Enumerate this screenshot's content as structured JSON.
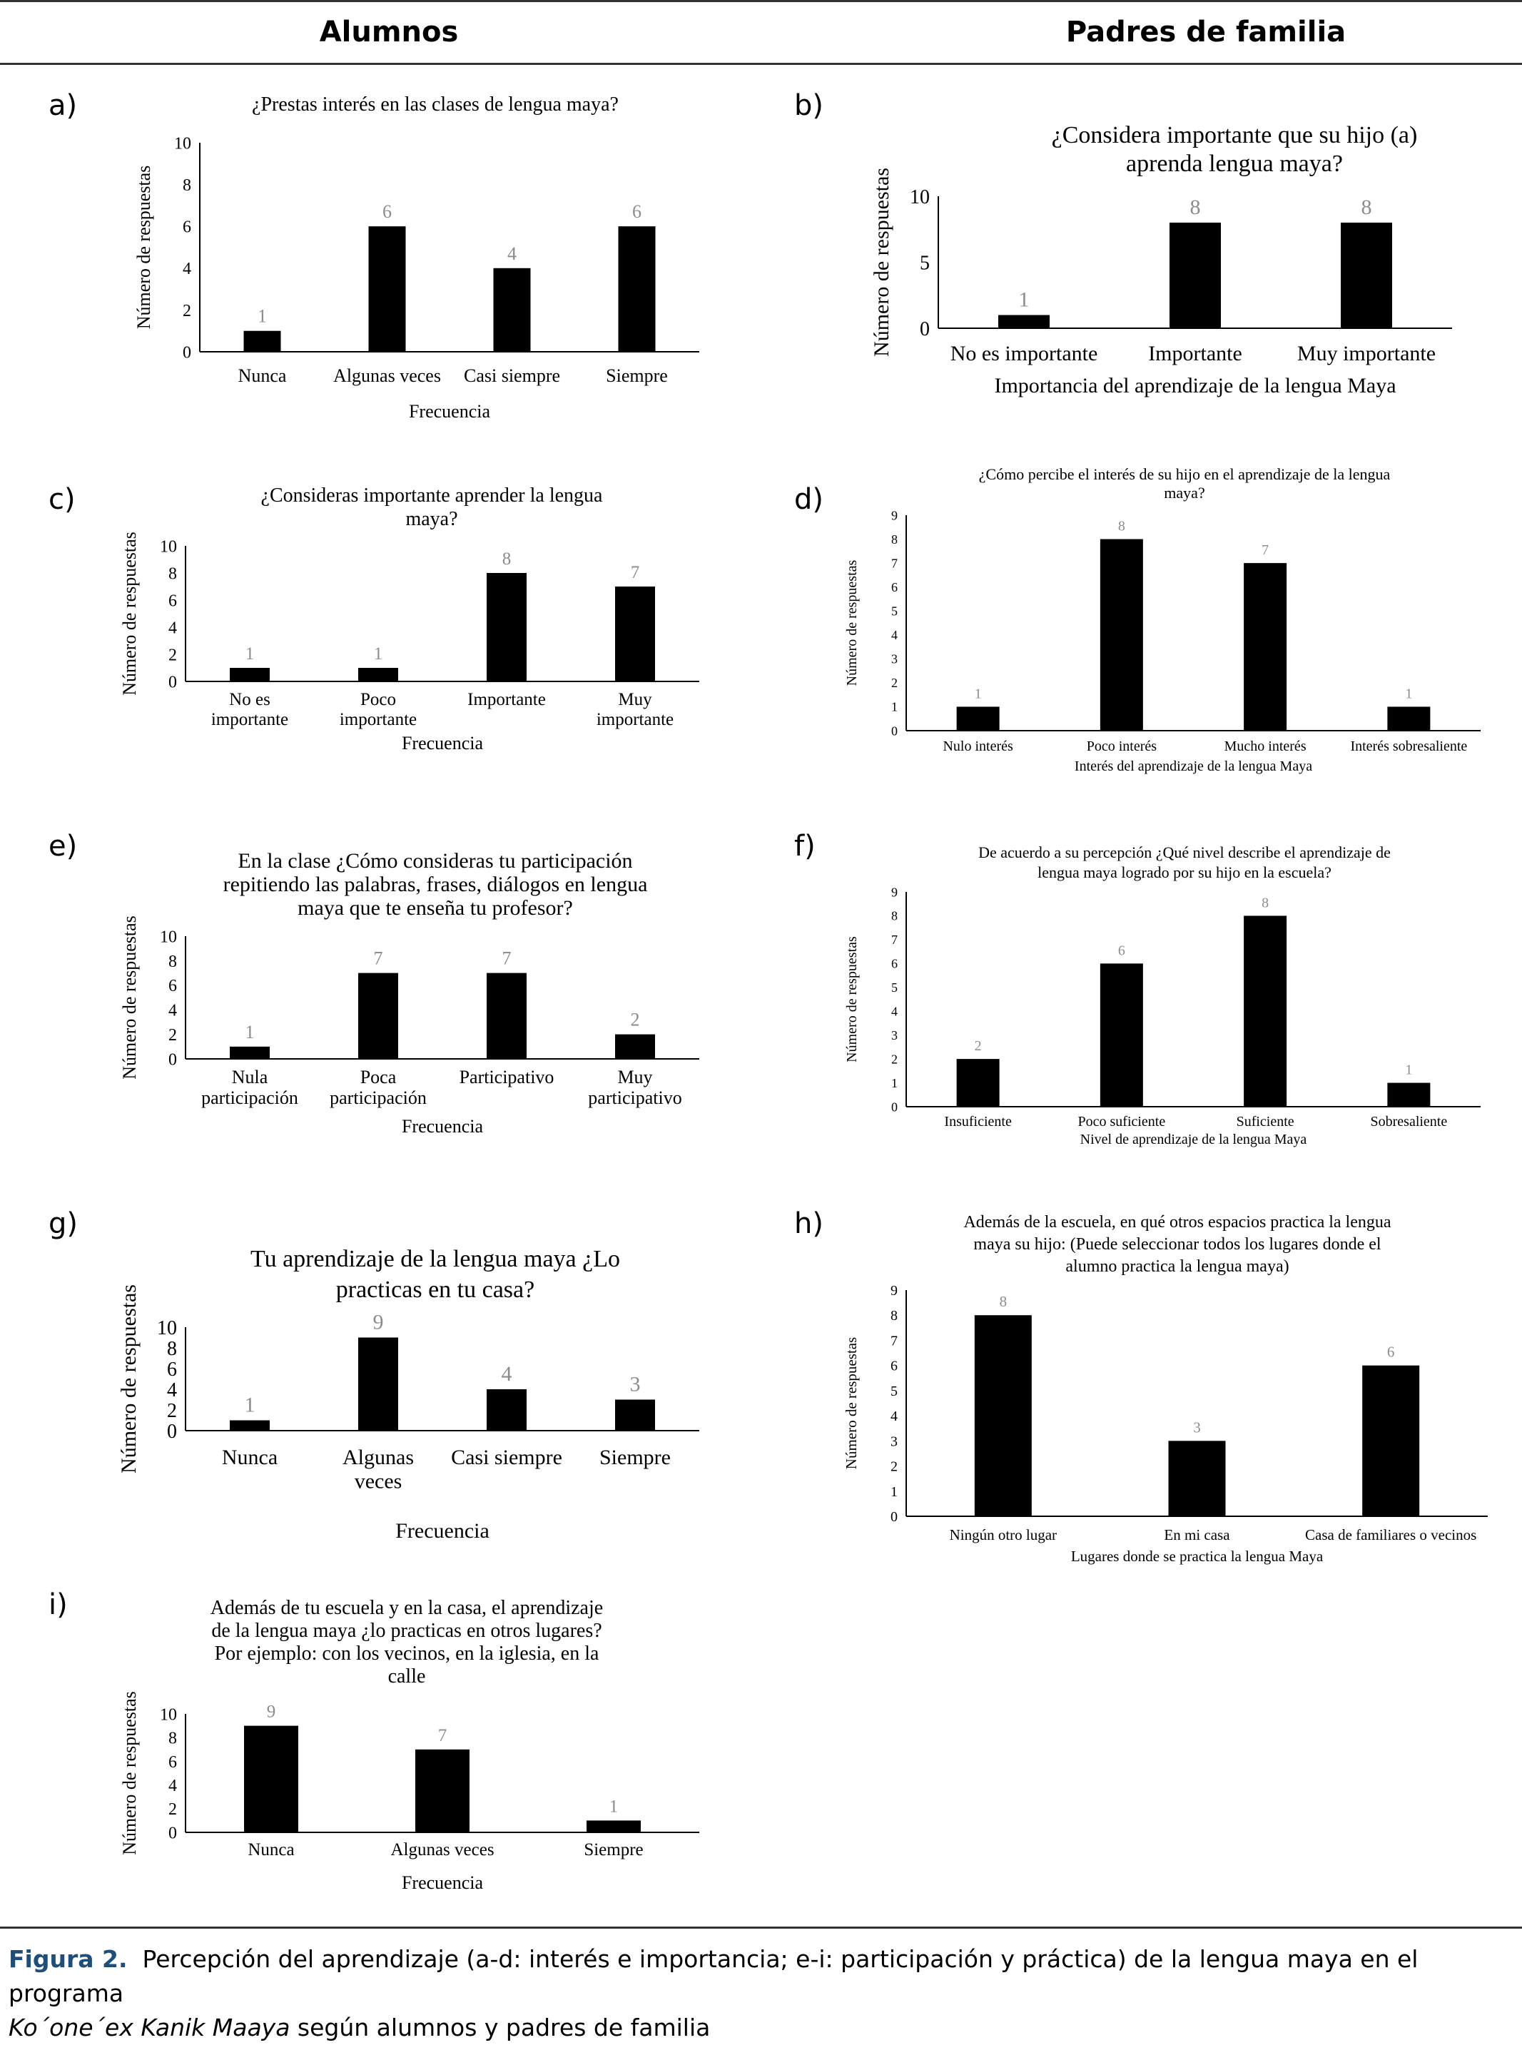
{
  "header": {
    "left": "Alumnos",
    "right": "Padres de familia"
  },
  "caption": {
    "label": "Figura 2.",
    "text": "Percepción del aprendizaje (a-d: interés e importancia; e-i: participación y práctica) de la lengua maya en el programa",
    "italic": "Ko´one´ex Kanik Maaya",
    "tail": " según alumnos y padres de familia"
  },
  "colors": {
    "bar": "#000000",
    "data_label": "#8c8c8c",
    "caption_label": "#1f4e79"
  },
  "chart_data": [
    {
      "id": "a",
      "letter": "a)",
      "type": "bar",
      "title": [
        "¿Prestas interés en las clases de lengua maya?"
      ],
      "categories": [
        [
          "Nunca"
        ],
        [
          "Algunas veces"
        ],
        [
          "Casi siempre"
        ],
        [
          "Siempre"
        ]
      ],
      "values": [
        1,
        6,
        4,
        6
      ],
      "yticks": [
        0,
        2,
        4,
        6,
        8,
        10
      ],
      "ylim": [
        0,
        10
      ],
      "ylabel": "Número de respuestas",
      "xlabel": "Frecuencia"
    },
    {
      "id": "b",
      "letter": "b)",
      "type": "bar",
      "title": [
        "¿Considera importante que su hijo (a)",
        "aprenda lengua maya?"
      ],
      "categories": [
        [
          "No es importante"
        ],
        [
          "Importante"
        ],
        [
          "Muy importante"
        ]
      ],
      "values": [
        1,
        8,
        8
      ],
      "yticks": [
        0,
        5,
        10
      ],
      "ylim": [
        0,
        10
      ],
      "ylabel": "Número de respuestas",
      "xlabel": "Importancia del aprendizaje de la lengua Maya"
    },
    {
      "id": "c",
      "letter": "c)",
      "type": "bar",
      "title": [
        "¿Consideras importante aprender la lengua",
        "maya?"
      ],
      "categories": [
        [
          "No es",
          "importante"
        ],
        [
          "Poco",
          "importante"
        ],
        [
          "Importante"
        ],
        [
          "Muy",
          "importante"
        ]
      ],
      "values": [
        1,
        1,
        8,
        7
      ],
      "yticks": [
        0,
        2,
        4,
        6,
        8,
        10
      ],
      "ylim": [
        0,
        10
      ],
      "ylabel": "Número de respuestas",
      "xlabel": "Frecuencia"
    },
    {
      "id": "d",
      "letter": "d)",
      "type": "bar",
      "title": [
        "¿Cómo percibe el interés de su hijo en el aprendizaje de la lengua",
        "maya?"
      ],
      "categories": [
        [
          "Nulo interés"
        ],
        [
          "Poco interés"
        ],
        [
          "Mucho interés"
        ],
        [
          "Interés sobresaliente"
        ]
      ],
      "values": [
        1,
        8,
        7,
        1
      ],
      "yticks": [
        0,
        1,
        2,
        3,
        4,
        5,
        6,
        7,
        8,
        9
      ],
      "ylim": [
        0,
        9
      ],
      "ylabel": "Número de respuestas",
      "xlabel": "Interés del aprendizaje de la lengua Maya"
    },
    {
      "id": "e",
      "letter": "e)",
      "type": "bar",
      "title": [
        "En la clase ¿Cómo consideras tu participación",
        "repitiendo las palabras, frases, diálogos en lengua",
        "maya que te enseña tu profesor?"
      ],
      "categories": [
        [
          "Nula",
          "participación"
        ],
        [
          "Poca",
          "participación"
        ],
        [
          "Participativo"
        ],
        [
          "Muy",
          "participativo"
        ]
      ],
      "values": [
        1,
        7,
        7,
        2
      ],
      "yticks": [
        0,
        2,
        4,
        6,
        8,
        10
      ],
      "ylim": [
        0,
        10
      ],
      "ylabel": "Número de respuestas",
      "xlabel": "Frecuencia"
    },
    {
      "id": "f",
      "letter": "f)",
      "type": "bar",
      "title": [
        "De acuerdo a su percepción ¿Qué nivel describe el aprendizaje de",
        "lengua maya logrado por su hijo en la escuela?"
      ],
      "categories": [
        [
          "Insuficiente"
        ],
        [
          "Poco suficiente"
        ],
        [
          "Suficiente"
        ],
        [
          "Sobresaliente"
        ]
      ],
      "values": [
        2,
        6,
        8,
        1
      ],
      "yticks": [
        0,
        1,
        2,
        3,
        4,
        5,
        6,
        7,
        8,
        9
      ],
      "ylim": [
        0,
        9
      ],
      "ylabel": "Número de respuestas",
      "xlabel": "Nivel de aprendizaje de la lengua Maya"
    },
    {
      "id": "g",
      "letter": "g)",
      "type": "bar",
      "title": [
        "Tu aprendizaje de la lengua maya ¿Lo",
        "practicas en tu casa?"
      ],
      "categories": [
        [
          "Nunca"
        ],
        [
          "Algunas",
          "veces"
        ],
        [
          "Casi siempre"
        ],
        [
          "Siempre"
        ]
      ],
      "values": [
        1,
        9,
        4,
        3
      ],
      "yticks": [
        0,
        2,
        4,
        6,
        8,
        10
      ],
      "ylim": [
        0,
        10
      ],
      "ylabel": "Número de respuestas",
      "xlabel": "Frecuencia"
    },
    {
      "id": "h",
      "letter": "h)",
      "type": "bar",
      "title": [
        "Además de la escuela, en qué otros espacios practica la lengua",
        "maya su hijo: (Puede seleccionar todos los lugares donde el",
        "alumno practica la lengua maya)"
      ],
      "categories": [
        [
          "Ningún otro lugar"
        ],
        [
          "En mi casa"
        ],
        [
          "Casa de familiares o vecinos"
        ]
      ],
      "values": [
        8,
        3,
        6
      ],
      "yticks": [
        0,
        1,
        2,
        3,
        4,
        5,
        6,
        7,
        8,
        9
      ],
      "ylim": [
        0,
        9
      ],
      "ylabel": "Número de respuestas",
      "xlabel": "Lugares donde se practica la lengua Maya"
    },
    {
      "id": "i",
      "letter": "i)",
      "type": "bar",
      "title": [
        "Además de tu escuela  y en la casa, el aprendizaje",
        "de la lengua maya ¿lo practicas en otros lugares?",
        "Por ejemplo:  con los vecinos, en la iglesia,  en la",
        "calle"
      ],
      "categories": [
        [
          "Nunca"
        ],
        [
          "Algunas veces"
        ],
        [
          "Siempre"
        ]
      ],
      "values": [
        9,
        7,
        1
      ],
      "yticks": [
        0,
        2,
        4,
        6,
        8,
        10
      ],
      "ylim": [
        0,
        10
      ],
      "ylabel": "Número de respuestas",
      "xlabel": "Frecuencia"
    }
  ]
}
